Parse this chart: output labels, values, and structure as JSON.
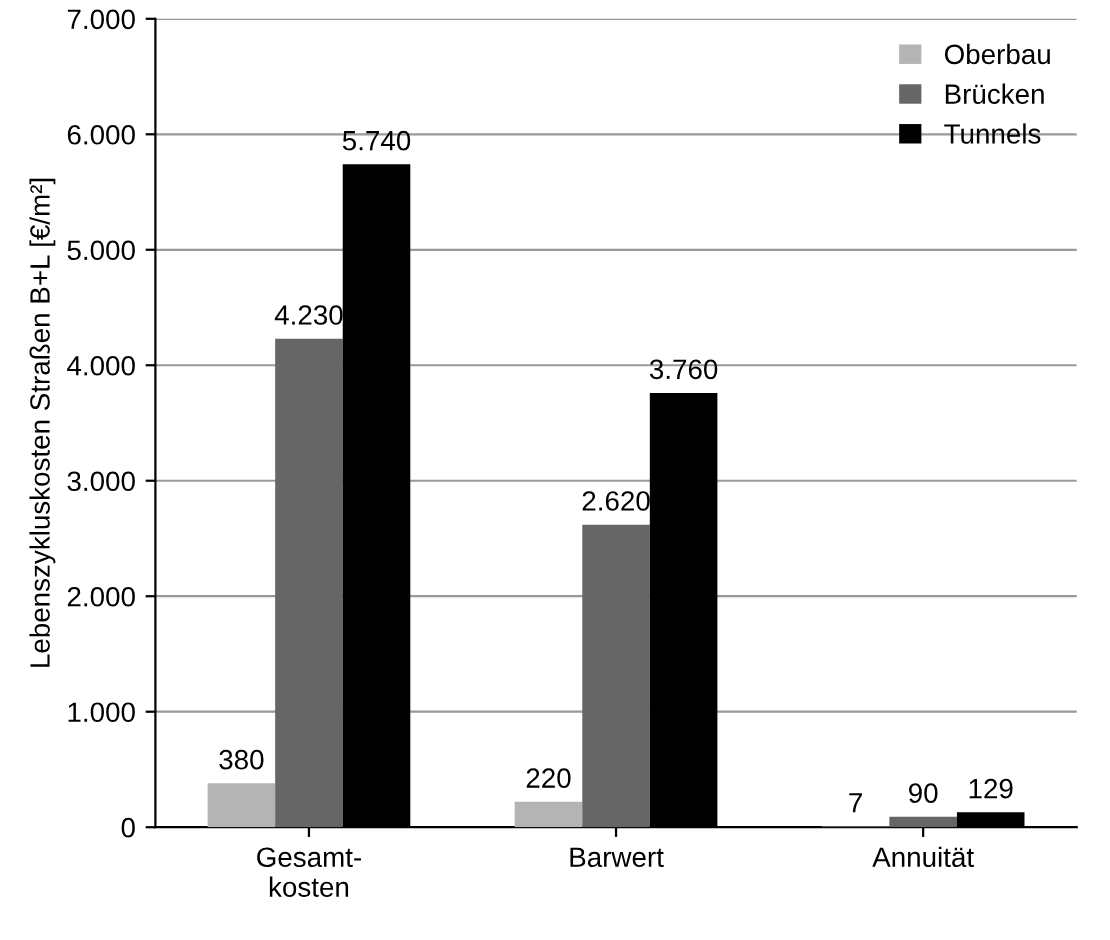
{
  "chart_data": {
    "type": "bar",
    "categories": [
      "Gesamt-\nkosten",
      "Barwert",
      "Annuität"
    ],
    "ylabel": "Lebenszykluskosten Straßen B+L [€/m²]",
    "series": [
      {
        "name": "Oberbau",
        "color": "#b4b4b4",
        "values": [
          380,
          220,
          7
        ],
        "value_labels": [
          "380",
          "220",
          "7"
        ]
      },
      {
        "name": "Brücken",
        "color": "#666666",
        "values": [
          4230,
          2620,
          90
        ],
        "value_labels": [
          "4.230",
          "2.620",
          "90"
        ]
      },
      {
        "name": "Tunnels",
        "color": "#000000",
        "values": [
          5740,
          3760,
          129
        ],
        "value_labels": [
          "5.740",
          "3.760",
          "129"
        ]
      }
    ],
    "ylim": [
      0,
      7000
    ],
    "yticks": [
      0,
      {
        "value": 1000,
        "label": "1.000"
      },
      {
        "value": 2000,
        "label": "2.000"
      },
      {
        "value": 3000,
        "label": "3.000"
      },
      {
        "value": 4000,
        "label": "4.000"
      },
      {
        "value": 5000,
        "label": "5.000"
      },
      {
        "value": 6000,
        "label": "6.000"
      },
      {
        "value": 7000,
        "label": "7.000"
      }
    ],
    "grid": "y",
    "legend": "top right"
  }
}
